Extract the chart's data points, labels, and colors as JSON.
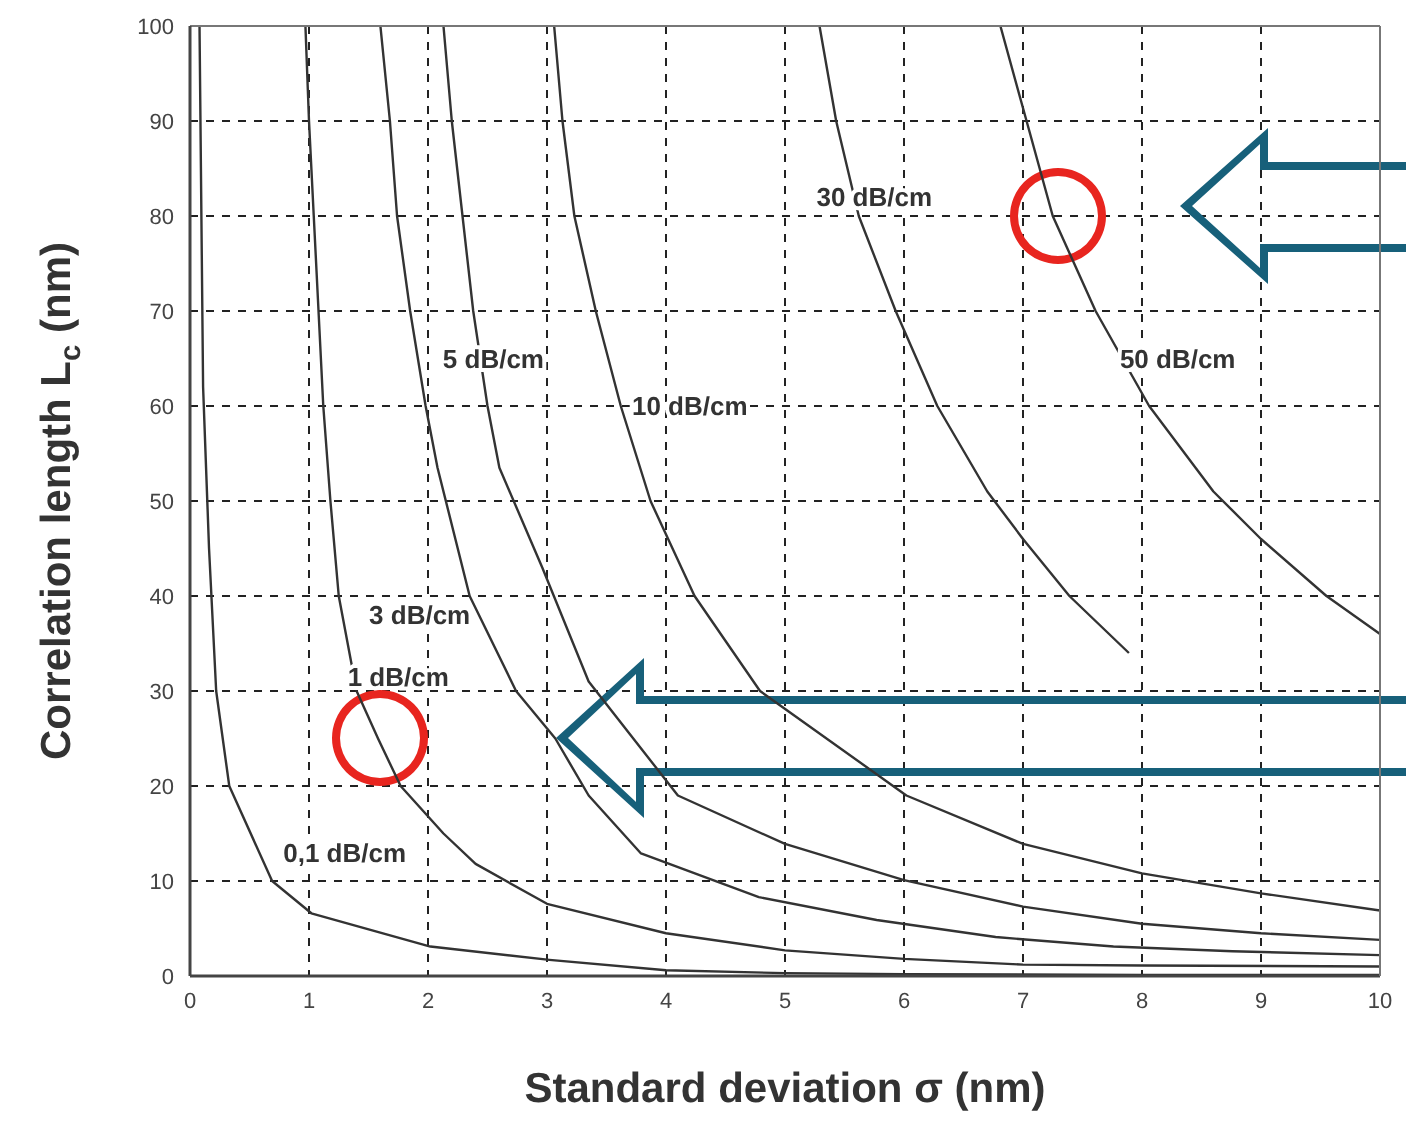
{
  "chart_data": {
    "type": "line",
    "xlabel": "Standard deviation  σ (nm)",
    "ylabel": "Correlation length  L$_{c}$ (nm)",
    "xlim": [
      0,
      10
    ],
    "ylim": [
      0,
      100
    ],
    "xticks": [
      0,
      1,
      2,
      3,
      4,
      5,
      6,
      7,
      8,
      9,
      10
    ],
    "yticks": [
      0,
      10,
      20,
      30,
      40,
      50,
      60,
      70,
      80,
      90,
      100
    ],
    "grid": true,
    "legend": false,
    "marker": "none",
    "line_style": "solid",
    "series": [
      {
        "name": "0,1 dB/cm",
        "color": "#333333",
        "x": [
          0.08,
          0.11,
          0.16,
          0.22,
          0.33,
          0.69,
          1.02,
          2.02,
          3.02,
          4.0,
          5.0,
          6.0,
          8.0,
          10.0
        ],
        "values": [
          100,
          62,
          45,
          30,
          20,
          10,
          6.6,
          3.1,
          1.7,
          0.6,
          0.3,
          0.2,
          0.1,
          0.1
        ]
      },
      {
        "name": "1 dB/cm",
        "color": "#333333",
        "x": [
          0.97,
          1.0,
          1.04,
          1.08,
          1.12,
          1.18,
          1.25,
          1.4,
          1.58,
          1.77,
          2.13,
          2.4,
          3.0,
          4.0,
          5.0,
          6.0,
          7.0,
          8.0,
          10.0
        ],
        "values": [
          100,
          90,
          80,
          70,
          60,
          50,
          40,
          30,
          25,
          20,
          15,
          11.8,
          7.6,
          4.5,
          2.7,
          1.8,
          1.2,
          1.1,
          1.0
        ]
      },
      {
        "name": "3 dB/cm",
        "color": "#333333",
        "x": [
          1.6,
          1.68,
          1.74,
          1.85,
          1.98,
          2.08,
          2.35,
          2.74,
          3.07,
          3.35,
          3.79,
          4.78,
          5.77,
          6.77,
          7.76,
          8.76,
          10.0
        ],
        "values": [
          100,
          90,
          80,
          70,
          60,
          53.5,
          40,
          30,
          25,
          19,
          12.9,
          8.3,
          5.9,
          4.1,
          3.1,
          2.6,
          2.2
        ]
      },
      {
        "name": "5 dB/cm",
        "color": "#333333",
        "x": [
          2.13,
          2.2,
          2.29,
          2.38,
          2.5,
          2.6,
          2.96,
          3.35,
          4.1,
          5.0,
          6.0,
          7.0,
          8.0,
          9.0,
          10.0
        ],
        "values": [
          100,
          90,
          80,
          70,
          60,
          53.5,
          43,
          31,
          19,
          13.9,
          10.1,
          7.3,
          5.5,
          4.5,
          3.8
        ]
      },
      {
        "name": "10 dB/cm",
        "color": "#333333",
        "x": [
          3.06,
          3.13,
          3.23,
          3.41,
          3.62,
          3.87,
          4.24,
          4.79,
          6.02,
          7.0,
          8.0,
          9.0,
          10.0
        ],
        "values": [
          100,
          90,
          80,
          70,
          60,
          50,
          40,
          30,
          19,
          13.9,
          10.8,
          8.7,
          6.9
        ]
      },
      {
        "name": "30 dB/cm",
        "color": "#333333",
        "x": [
          5.29,
          5.43,
          5.62,
          5.93,
          6.28,
          6.7,
          7.0,
          7.39,
          7.89
        ],
        "values": [
          100,
          90,
          80,
          70,
          60,
          51,
          46,
          40,
          34
        ]
      },
      {
        "name": "50 dB/cm",
        "color": "#333333",
        "x": [
          6.81,
          7.03,
          7.25,
          7.61,
          8.06,
          8.6,
          9.0,
          9.55,
          10.0
        ],
        "values": [
          100,
          90,
          80,
          70,
          60,
          51,
          46,
          40,
          36
        ]
      }
    ]
  }
}
